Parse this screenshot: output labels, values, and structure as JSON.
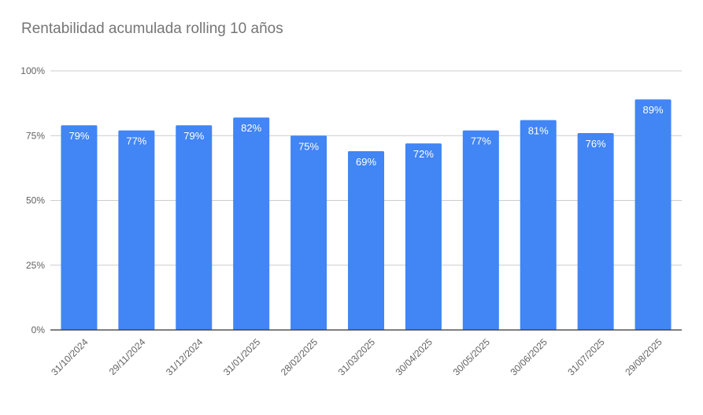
{
  "chart_data": {
    "type": "bar",
    "title": "Rentabilidad acumulada rolling 10 años",
    "categories": [
      "31/10/2024",
      "29/11/2024",
      "31/12/2024",
      "31/01/2025",
      "28/02/2025",
      "31/03/2025",
      "30/04/2025",
      "30/05/2025",
      "30/06/2025",
      "31/07/2025",
      "29/08/2025"
    ],
    "values": [
      79,
      77,
      79,
      82,
      75,
      69,
      72,
      77,
      81,
      76,
      89
    ],
    "data_labels": [
      "79%",
      "77%",
      "79%",
      "82%",
      "75%",
      "69%",
      "72%",
      "77%",
      "81%",
      "76%",
      "89%"
    ],
    "yticks": [
      "0%",
      "25%",
      "50%",
      "75%",
      "100%"
    ],
    "ylim": [
      0,
      100
    ],
    "grid": true,
    "bar_color": "#4285f4",
    "label_color": "#ffffff",
    "tick_color": "#616161"
  }
}
